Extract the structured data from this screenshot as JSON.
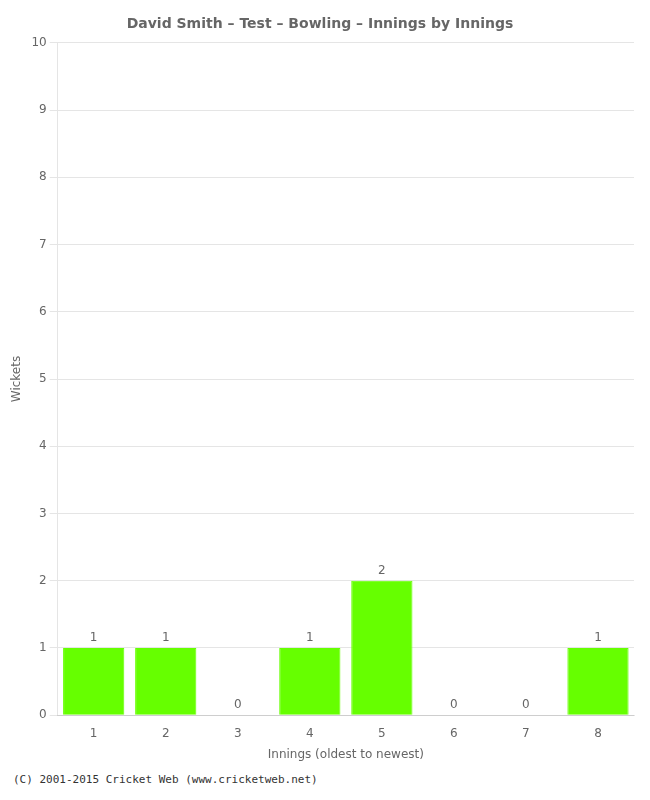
{
  "chart_data": {
    "type": "bar",
    "title": "David Smith – Test – Bowling – Innings by Innings",
    "xlabel": "Innings (oldest to newest)",
    "ylabel": "Wickets",
    "categories": [
      "1",
      "2",
      "3",
      "4",
      "5",
      "6",
      "7",
      "8"
    ],
    "values": [
      1,
      1,
      0,
      1,
      2,
      0,
      0,
      1
    ],
    "color": "#66ff00",
    "ylim": [
      0,
      10
    ],
    "yticks": [
      0,
      1,
      2,
      3,
      4,
      5,
      6,
      7,
      8,
      9,
      10
    ],
    "grid": true,
    "data_labels": true,
    "annotations": [
      "(C) 2001-2015 Cricket Web (www.cricketweb.net)"
    ]
  }
}
